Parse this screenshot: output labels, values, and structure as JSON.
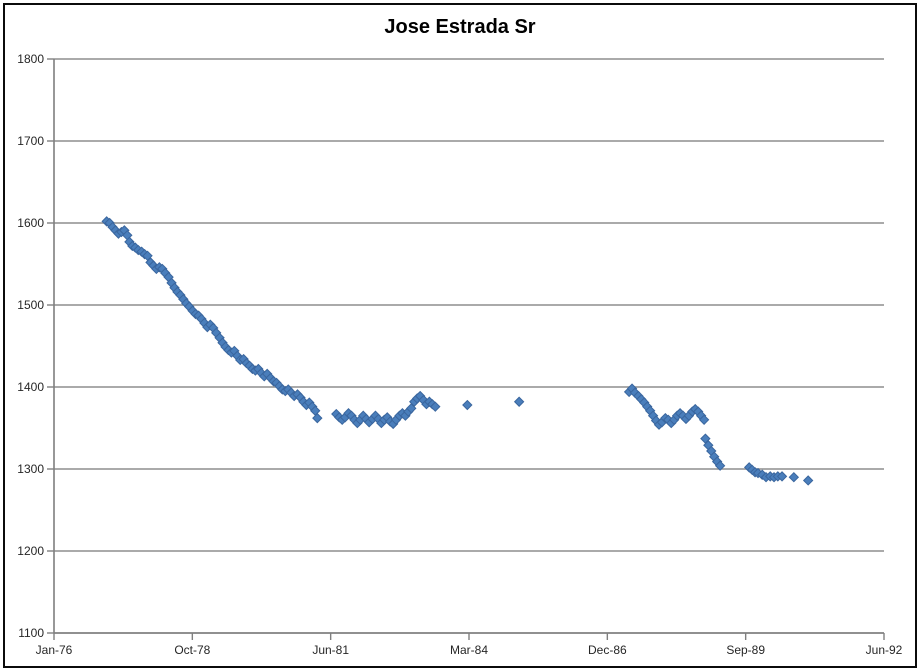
{
  "window": {
    "background": "#ffffff",
    "frame_color": "#0b0b0b"
  },
  "chart_data": {
    "type": "scatter",
    "title": "Jose Estrada Sr",
    "legend": "none",
    "grid": "horizontal",
    "style": {
      "marker": "diamond",
      "marker_size_px": 9,
      "marker_color": "#4a7ebb",
      "marker_border_color": "#3a669e",
      "gridline_color": "#8e8e8e",
      "axis_color": "#7f7f7f",
      "label_color": "#262626",
      "title_color": "#000000"
    },
    "x_axis": {
      "unit": "months since Jan-1976",
      "min": 0,
      "max": 197,
      "tick_labels": [
        "Jan-76",
        "Oct-78",
        "Jun-81",
        "Mar-84",
        "Dec-86",
        "Sep-89",
        "Jun-92"
      ]
    },
    "y_axis": {
      "min": 1100,
      "max": 1800,
      "step": 100,
      "tick_labels": [
        "1100",
        "1200",
        "1300",
        "1400",
        "1500",
        "1600",
        "1700",
        "1800"
      ]
    },
    "series": [
      {
        "name": "Jose Estrada Sr",
        "points": [
          [
            12.5,
            1602
          ],
          [
            13.2,
            1600
          ],
          [
            13.9,
            1595
          ],
          [
            14.6,
            1591
          ],
          [
            15.3,
            1587
          ],
          [
            16.0,
            1589
          ],
          [
            16.7,
            1591
          ],
          [
            17.4,
            1585
          ],
          [
            17.9,
            1577
          ],
          [
            18.6,
            1572
          ],
          [
            19.3,
            1570
          ],
          [
            20.0,
            1567
          ],
          [
            20.8,
            1565
          ],
          [
            21.5,
            1562
          ],
          [
            22.2,
            1560
          ],
          [
            22.9,
            1552
          ],
          [
            23.6,
            1548
          ],
          [
            24.3,
            1544
          ],
          [
            25.0,
            1546
          ],
          [
            25.7,
            1544
          ],
          [
            26.4,
            1539
          ],
          [
            27.2,
            1534
          ],
          [
            27.9,
            1527
          ],
          [
            28.6,
            1521
          ],
          [
            29.3,
            1516
          ],
          [
            30.0,
            1512
          ],
          [
            30.7,
            1507
          ],
          [
            31.4,
            1502
          ],
          [
            32.1,
            1498
          ],
          [
            32.9,
            1493
          ],
          [
            33.6,
            1489
          ],
          [
            34.3,
            1487
          ],
          [
            35.0,
            1483
          ],
          [
            35.7,
            1478
          ],
          [
            36.4,
            1473
          ],
          [
            37.1,
            1476
          ],
          [
            37.8,
            1472
          ],
          [
            38.5,
            1466
          ],
          [
            39.3,
            1460
          ],
          [
            40.0,
            1454
          ],
          [
            40.7,
            1449
          ],
          [
            41.4,
            1445
          ],
          [
            42.1,
            1442
          ],
          [
            42.8,
            1444
          ],
          [
            43.5,
            1438
          ],
          [
            44.2,
            1433
          ],
          [
            45.0,
            1434
          ],
          [
            45.7,
            1429
          ],
          [
            46.4,
            1426
          ],
          [
            47.1,
            1422
          ],
          [
            47.8,
            1420
          ],
          [
            48.5,
            1422
          ],
          [
            49.2,
            1417
          ],
          [
            49.9,
            1413
          ],
          [
            50.6,
            1416
          ],
          [
            51.4,
            1411
          ],
          [
            52.1,
            1407
          ],
          [
            52.8,
            1405
          ],
          [
            53.5,
            1401
          ],
          [
            54.2,
            1397
          ],
          [
            54.9,
            1395
          ],
          [
            55.6,
            1397
          ],
          [
            56.3,
            1393
          ],
          [
            57.0,
            1389
          ],
          [
            57.8,
            1391
          ],
          [
            58.5,
            1387
          ],
          [
            59.2,
            1382
          ],
          [
            59.9,
            1378
          ],
          [
            60.6,
            1381
          ],
          [
            61.3,
            1376
          ],
          [
            62.0,
            1371
          ],
          [
            62.5,
            1362
          ],
          [
            67.0,
            1367
          ],
          [
            67.7,
            1363
          ],
          [
            68.4,
            1360
          ],
          [
            69.1,
            1363
          ],
          [
            69.9,
            1368
          ],
          [
            70.6,
            1365
          ],
          [
            71.3,
            1360
          ],
          [
            72.0,
            1356
          ],
          [
            72.7,
            1360
          ],
          [
            73.4,
            1365
          ],
          [
            74.1,
            1361
          ],
          [
            74.8,
            1357
          ],
          [
            75.6,
            1361
          ],
          [
            76.3,
            1365
          ],
          [
            77.0,
            1361
          ],
          [
            77.7,
            1356
          ],
          [
            78.4,
            1360
          ],
          [
            79.1,
            1363
          ],
          [
            79.8,
            1358
          ],
          [
            80.5,
            1355
          ],
          [
            81.2,
            1360
          ],
          [
            82.0,
            1365
          ],
          [
            82.7,
            1368
          ],
          [
            83.4,
            1365
          ],
          [
            84.1,
            1370
          ],
          [
            84.8,
            1374
          ],
          [
            85.5,
            1382
          ],
          [
            86.2,
            1386
          ],
          [
            86.9,
            1389
          ],
          [
            87.7,
            1384
          ],
          [
            88.4,
            1379
          ],
          [
            89.1,
            1382
          ],
          [
            89.8,
            1379
          ],
          [
            90.5,
            1376
          ],
          [
            98.1,
            1378
          ],
          [
            110.4,
            1382
          ],
          [
            136.5,
            1394
          ],
          [
            137.2,
            1398
          ],
          [
            137.9,
            1393
          ],
          [
            138.7,
            1389
          ],
          [
            139.4,
            1385
          ],
          [
            140.1,
            1381
          ],
          [
            140.8,
            1376
          ],
          [
            141.5,
            1371
          ],
          [
            142.2,
            1365
          ],
          [
            142.9,
            1359
          ],
          [
            143.6,
            1354
          ],
          [
            144.3,
            1357
          ],
          [
            145.1,
            1362
          ],
          [
            145.8,
            1360
          ],
          [
            146.5,
            1356
          ],
          [
            147.2,
            1360
          ],
          [
            147.9,
            1365
          ],
          [
            148.6,
            1368
          ],
          [
            149.3,
            1365
          ],
          [
            150.0,
            1361
          ],
          [
            150.7,
            1365
          ],
          [
            151.5,
            1370
          ],
          [
            152.2,
            1373
          ],
          [
            152.9,
            1370
          ],
          [
            153.6,
            1365
          ],
          [
            154.3,
            1360
          ],
          [
            154.6,
            1337
          ],
          [
            155.3,
            1329
          ],
          [
            156.0,
            1322
          ],
          [
            156.7,
            1315
          ],
          [
            157.4,
            1309
          ],
          [
            158.1,
            1304
          ],
          [
            165.0,
            1302
          ],
          [
            165.7,
            1299
          ],
          [
            166.4,
            1296
          ],
          [
            167.1,
            1295
          ],
          [
            168.1,
            1293
          ],
          [
            169.0,
            1290
          ],
          [
            170.0,
            1291
          ],
          [
            170.9,
            1290
          ],
          [
            171.8,
            1291
          ],
          [
            172.8,
            1291
          ],
          [
            175.6,
            1290
          ],
          [
            179.0,
            1286
          ]
        ]
      }
    ]
  }
}
